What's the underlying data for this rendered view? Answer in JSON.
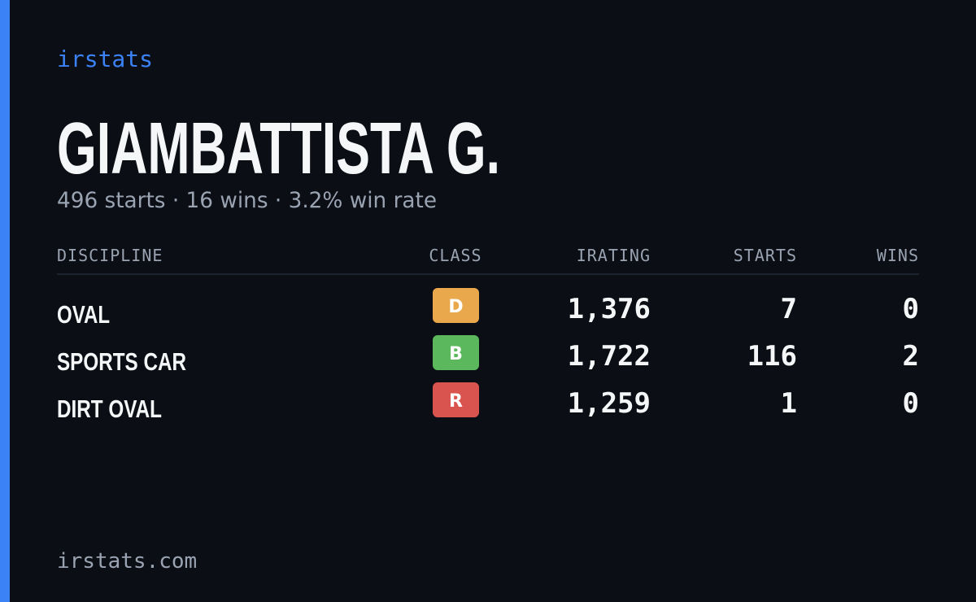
{
  "header": {
    "brand": "irstats",
    "name": "GIAMBATTISTA G.",
    "summary": "496 starts · 16 wins · 3.2% win rate"
  },
  "table": {
    "columns": [
      "DISCIPLINE",
      "CLASS",
      "IRATING",
      "STARTS",
      "WINS"
    ],
    "rows": [
      {
        "discipline": "OVAL",
        "class": "D",
        "class_color": "#e9a84c",
        "irating": "1,376",
        "starts": "7",
        "wins": "0"
      },
      {
        "discipline": "SPORTS CAR",
        "class": "B",
        "class_color": "#5cb85c",
        "irating": "1,722",
        "starts": "116",
        "wins": "2"
      },
      {
        "discipline": "DIRT OVAL",
        "class": "R",
        "class_color": "#d9534f",
        "irating": "1,259",
        "starts": "1",
        "wins": "0"
      }
    ]
  },
  "footer": {
    "site": "irstats.com"
  }
}
